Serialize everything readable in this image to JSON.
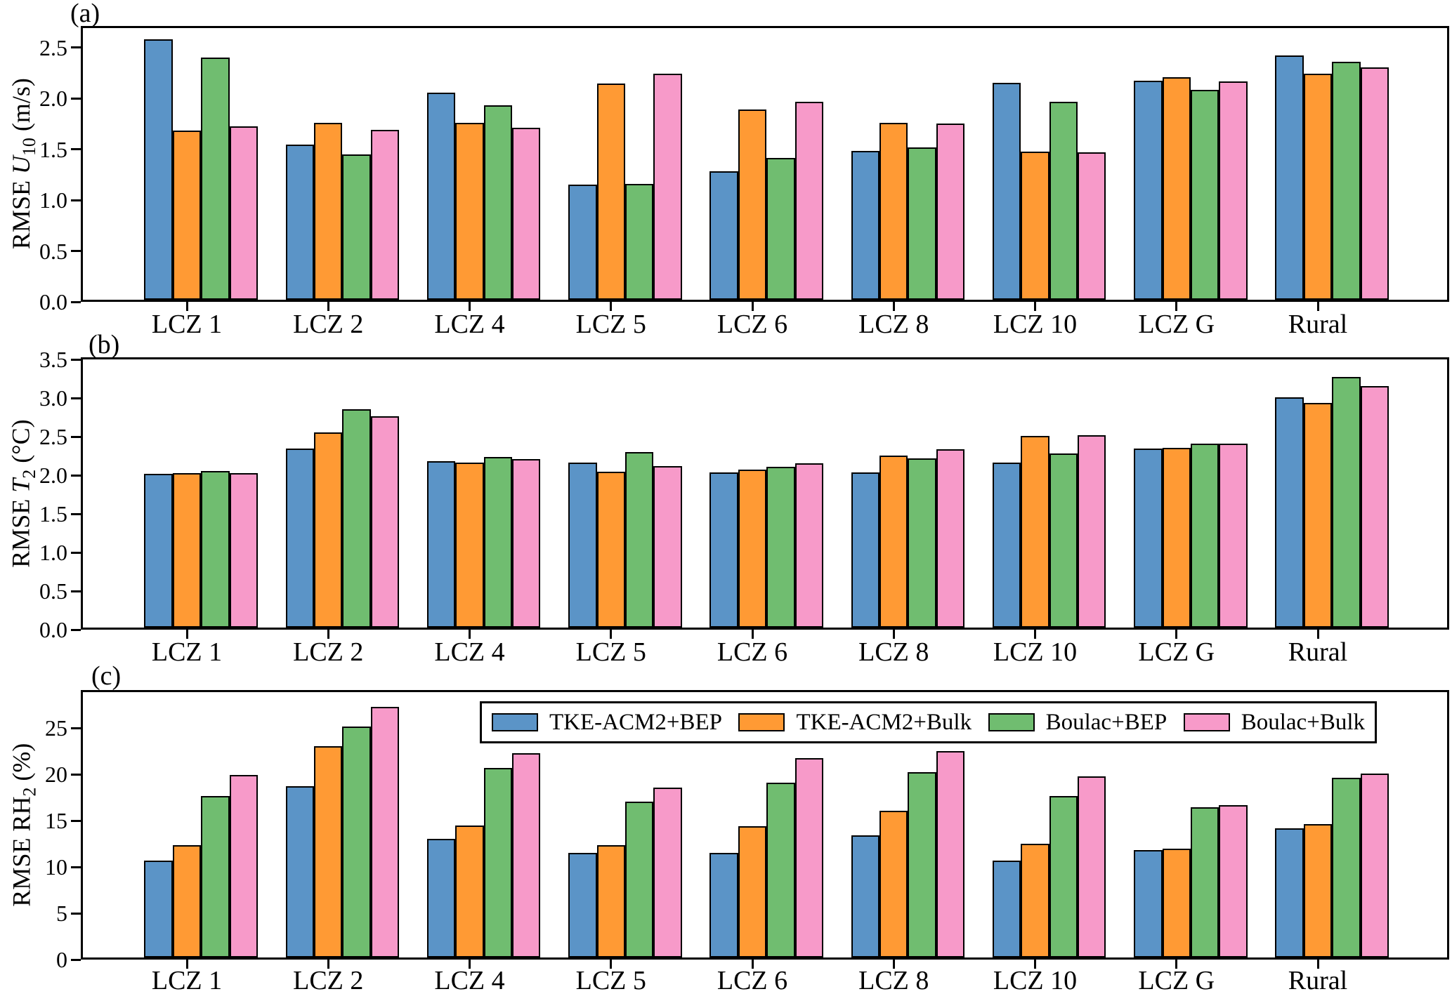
{
  "figure": {
    "background": "#ffffff"
  },
  "colors": {
    "blue": "#5B94C7",
    "orange": "#FF9A34",
    "green": "#70BD70",
    "pink": "#F79AC9",
    "edge": "#000000"
  },
  "legend": {
    "entries": [
      {
        "label": "TKE-ACM2+BEP",
        "color": "#5B94C7"
      },
      {
        "label": "TKE-ACM2+Bulk",
        "color": "#FF9A34"
      },
      {
        "label": "Boulac+BEP",
        "color": "#70BD70"
      },
      {
        "label": "Boulac+Bulk",
        "color": "#F79AC9"
      }
    ]
  },
  "chart_data": [
    {
      "type": "bar",
      "panel_label": "(a)",
      "ylabel": {
        "prefix": "RMSE",
        "symbol": "U",
        "symbol_italic": true,
        "subscript": "10",
        "unit": "(m/s)"
      },
      "categories": [
        "LCZ 1",
        "LCZ 2",
        "LCZ 4",
        "LCZ 5",
        "LCZ 6",
        "LCZ 8",
        "LCZ 10",
        "LCZ G",
        "Rural"
      ],
      "ytick_labels": [
        "0.0",
        "0.5",
        "1.0",
        "1.5",
        "2.0",
        "2.5"
      ],
      "ytick_values": [
        0,
        0.5,
        1.0,
        1.5,
        2.0,
        2.5
      ],
      "ylim": [
        0,
        2.714
      ],
      "grid": false,
      "series": [
        {
          "name": "TKE-ACM2+BEP",
          "color": "#5B94C7",
          "values": [
            2.6,
            1.55,
            2.07,
            1.15,
            1.28,
            1.49,
            2.17,
            2.19,
            2.44
          ]
        },
        {
          "name": "TKE-ACM2+Bulk",
          "color": "#FF9A34",
          "values": [
            1.69,
            1.77,
            1.77,
            2.16,
            1.9,
            1.77,
            1.48,
            2.22,
            2.26
          ]
        },
        {
          "name": "Boulac+BEP",
          "color": "#70BD70",
          "values": [
            2.42,
            1.45,
            1.94,
            1.16,
            1.42,
            1.52,
            1.98,
            2.1,
            2.38
          ]
        },
        {
          "name": "Boulac+Bulk",
          "color": "#F79AC9",
          "values": [
            1.73,
            1.7,
            1.72,
            2.26,
            1.98,
            1.76,
            1.47,
            2.18,
            2.32
          ]
        }
      ]
    },
    {
      "type": "bar",
      "panel_label": "(b)",
      "ylabel": {
        "prefix": "RMSE",
        "symbol": "T",
        "symbol_italic": true,
        "subscript": "2",
        "unit": "(°C)"
      },
      "categories": [
        "LCZ 1",
        "LCZ 2",
        "LCZ 4",
        "LCZ 5",
        "LCZ 6",
        "LCZ 8",
        "LCZ 10",
        "LCZ G",
        "Rural"
      ],
      "ytick_labels": [
        "0.0",
        "0.5",
        "1.0",
        "1.5",
        "2.0",
        "2.5",
        "3.0",
        "3.5"
      ],
      "ytick_values": [
        0,
        0.5,
        1.0,
        1.5,
        2.0,
        2.5,
        3.0,
        3.5
      ],
      "ylim": [
        0,
        3.53
      ],
      "grid": false,
      "series": [
        {
          "name": "TKE-ACM2+BEP",
          "color": "#5B94C7",
          "values": [
            2.02,
            2.36,
            2.19,
            2.17,
            2.04,
            2.04,
            2.17,
            2.36,
            3.03
          ]
        },
        {
          "name": "TKE-ACM2+Bulk",
          "color": "#FF9A34",
          "values": [
            2.03,
            2.57,
            2.17,
            2.05,
            2.08,
            2.26,
            2.52,
            2.37,
            2.96
          ]
        },
        {
          "name": "Boulac+BEP",
          "color": "#70BD70",
          "values": [
            2.06,
            2.87,
            2.25,
            2.31,
            2.12,
            2.23,
            2.29,
            2.42,
            3.3
          ]
        },
        {
          "name": "Boulac+Bulk",
          "color": "#F79AC9",
          "values": [
            2.03,
            2.78,
            2.22,
            2.13,
            2.16,
            2.35,
            2.53,
            2.42,
            3.18
          ]
        }
      ]
    },
    {
      "type": "bar",
      "panel_label": "(c)",
      "ylabel": {
        "prefix": "RMSE",
        "symbol": "RH",
        "symbol_italic": false,
        "subscript": "2",
        "unit": "(%)"
      },
      "categories": [
        "LCZ 1",
        "LCZ 2",
        "LCZ 4",
        "LCZ 5",
        "LCZ 6",
        "LCZ 8",
        "LCZ 10",
        "LCZ G",
        "Rural"
      ],
      "ytick_labels": [
        "0",
        "5",
        "10",
        "15",
        "20",
        "25"
      ],
      "ytick_values": [
        0,
        5,
        10,
        15,
        20,
        25
      ],
      "ylim": [
        0,
        29.1
      ],
      "grid": false,
      "legend_position": "upper-center-inside",
      "series": [
        {
          "name": "TKE-ACM2+BEP",
          "color": "#5B94C7",
          "values": [
            10.6,
            18.8,
            13.0,
            11.5,
            11.5,
            13.4,
            10.6,
            11.8,
            14.2
          ]
        },
        {
          "name": "TKE-ACM2+Bulk",
          "color": "#FF9A34",
          "values": [
            12.3,
            23.2,
            14.5,
            12.3,
            14.4,
            16.1,
            12.5,
            11.9,
            14.6
          ]
        },
        {
          "name": "Boulac+BEP",
          "color": "#70BD70",
          "values": [
            17.7,
            25.3,
            20.8,
            17.1,
            19.2,
            20.3,
            17.7,
            16.5,
            19.7
          ]
        },
        {
          "name": "Boulac+Bulk",
          "color": "#F79AC9",
          "values": [
            20.0,
            27.5,
            22.4,
            18.6,
            21.9,
            22.6,
            19.9,
            16.7,
            20.2
          ]
        }
      ]
    }
  ]
}
